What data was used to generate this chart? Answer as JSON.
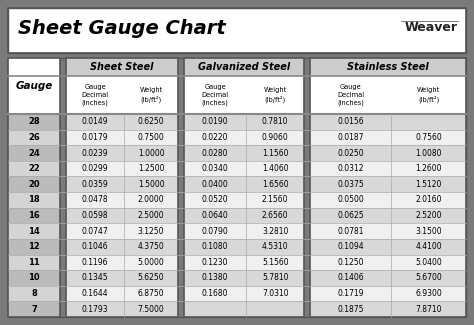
{
  "title": "Sheet Gauge Chart",
  "bg_outer": "#7a7a7a",
  "bg_table_divider": "#888888",
  "bg_inner": "#ffffff",
  "col_headers": [
    "Sheet Steel",
    "Galvanized Steel",
    "Stainless Steel"
  ],
  "gauges": [
    28,
    26,
    24,
    22,
    20,
    18,
    16,
    14,
    12,
    11,
    10,
    8,
    7
  ],
  "sheet_steel": [
    [
      "0.0149",
      "0.6250"
    ],
    [
      "0.0179",
      "0.7500"
    ],
    [
      "0.0239",
      "1.0000"
    ],
    [
      "0.0299",
      "1.2500"
    ],
    [
      "0.0359",
      "1.5000"
    ],
    [
      "0.0478",
      "2.0000"
    ],
    [
      "0.0598",
      "2.5000"
    ],
    [
      "0.0747",
      "3.1250"
    ],
    [
      "0.1046",
      "4.3750"
    ],
    [
      "0.1196",
      "5.0000"
    ],
    [
      "0.1345",
      "5.6250"
    ],
    [
      "0.1644",
      "6.8750"
    ],
    [
      "0.1793",
      "7.5000"
    ]
  ],
  "galvanized_steel": [
    [
      "0.0190",
      "0.7810"
    ],
    [
      "0.0220",
      "0.9060"
    ],
    [
      "0.0280",
      "1.1560"
    ],
    [
      "0.0340",
      "1.4060"
    ],
    [
      "0.0400",
      "1.6560"
    ],
    [
      "0.0520",
      "2.1560"
    ],
    [
      "0.0640",
      "2.6560"
    ],
    [
      "0.0790",
      "3.2810"
    ],
    [
      "0.1080",
      "4.5310"
    ],
    [
      "0.1230",
      "5.1560"
    ],
    [
      "0.1380",
      "5.7810"
    ],
    [
      "0.1680",
      "7.0310"
    ],
    [
      "",
      ""
    ]
  ],
  "stainless_steel": [
    [
      "0.0156",
      ""
    ],
    [
      "0.0187",
      "0.7560"
    ],
    [
      "0.0250",
      "1.0080"
    ],
    [
      "0.0312",
      "1.2600"
    ],
    [
      "0.0375",
      "1.5120"
    ],
    [
      "0.0500",
      "2.0160"
    ],
    [
      "0.0625",
      "2.5200"
    ],
    [
      "0.0781",
      "3.1500"
    ],
    [
      "0.1094",
      "4.4100"
    ],
    [
      "0.1250",
      "5.0400"
    ],
    [
      "0.1406",
      "5.6700"
    ],
    [
      "0.1719",
      "6.9300"
    ],
    [
      "0.1875",
      "7.8710"
    ]
  ],
  "row_colors": [
    "#d8d8d8",
    "#f0f0f0",
    "#d8d8d8",
    "#f0f0f0",
    "#d8d8d8",
    "#f0f0f0",
    "#d8d8d8",
    "#f0f0f0",
    "#d8d8d8",
    "#f0f0f0",
    "#d8d8d8",
    "#f0f0f0",
    "#d8d8d8"
  ],
  "gauge_col_colors": [
    "#bbbbbb",
    "#d4d4d4",
    "#bbbbbb",
    "#d4d4d4",
    "#bbbbbb",
    "#d4d4d4",
    "#bbbbbb",
    "#d4d4d4",
    "#bbbbbb",
    "#d4d4d4",
    "#bbbbbb",
    "#d4d4d4",
    "#bbbbbb"
  ]
}
